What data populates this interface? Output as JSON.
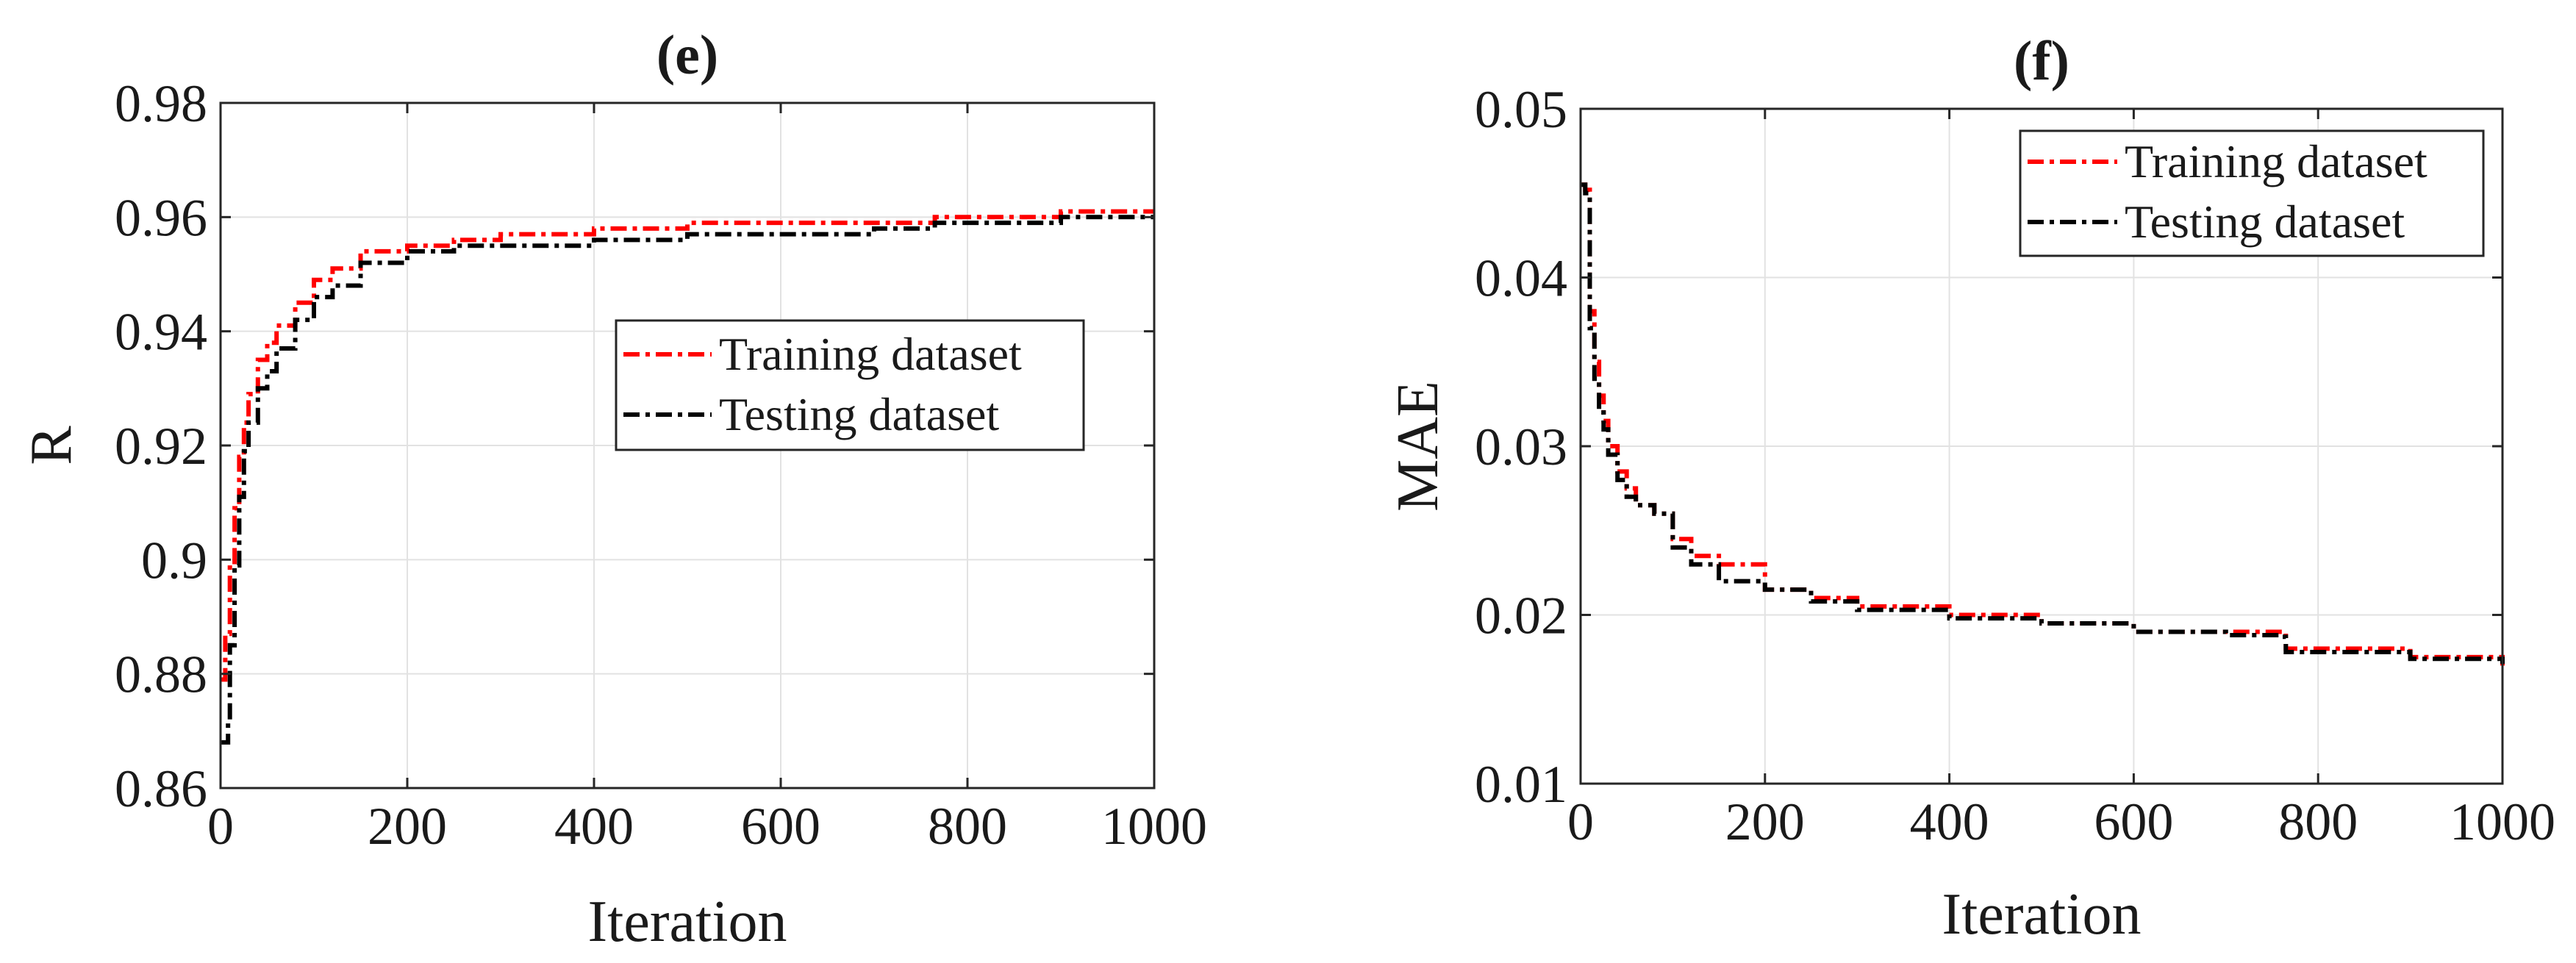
{
  "chart_data": [
    {
      "type": "line",
      "title": "(e)",
      "xlabel": "Iteration",
      "ylabel": "R",
      "xlim": [
        0,
        1000
      ],
      "ylim": [
        0.86,
        0.98
      ],
      "xticks": [
        0,
        200,
        400,
        600,
        800,
        1000
      ],
      "xtick_labels": [
        "0",
        "200",
        "400",
        "600",
        "800",
        "1000"
      ],
      "yticks": [
        0.86,
        0.88,
        0.9,
        0.92,
        0.94,
        0.96,
        0.98
      ],
      "ytick_labels": [
        "0.86",
        "0.88",
        "0.9",
        "0.92",
        "0.94",
        "0.96",
        "0.98"
      ],
      "grid": true,
      "legend_position": "center-right",
      "series": [
        {
          "name": "Training dataset",
          "color": "#ff0000",
          "x": [
            0,
            5,
            10,
            15,
            20,
            25,
            30,
            40,
            50,
            60,
            80,
            100,
            120,
            150,
            200,
            250,
            300,
            400,
            500,
            600,
            700,
            760,
            765,
            800,
            900,
            1000
          ],
          "y": [
            0.879,
            0.887,
            0.899,
            0.909,
            0.918,
            0.924,
            0.929,
            0.935,
            0.938,
            0.941,
            0.945,
            0.949,
            0.951,
            0.954,
            0.955,
            0.956,
            0.957,
            0.958,
            0.959,
            0.959,
            0.959,
            0.959,
            0.96,
            0.96,
            0.961,
            0.961
          ]
        },
        {
          "name": "Testing dataset",
          "color": "#000000",
          "x": [
            0,
            5,
            8,
            10,
            15,
            20,
            25,
            30,
            40,
            50,
            60,
            80,
            100,
            120,
            150,
            200,
            250,
            300,
            400,
            500,
            600,
            700,
            760,
            765,
            800,
            900,
            1000
          ],
          "y": [
            0.868,
            0.868,
            0.872,
            0.885,
            0.899,
            0.911,
            0.919,
            0.924,
            0.93,
            0.933,
            0.937,
            0.942,
            0.946,
            0.948,
            0.952,
            0.954,
            0.955,
            0.955,
            0.956,
            0.957,
            0.957,
            0.958,
            0.958,
            0.959,
            0.959,
            0.96,
            0.96
          ]
        }
      ]
    },
    {
      "type": "line",
      "title": "(f)",
      "xlabel": "Iteration",
      "ylabel": "MAE",
      "xlim": [
        0,
        1000
      ],
      "ylim": [
        0.01,
        0.05
      ],
      "xticks": [
        0,
        200,
        400,
        600,
        800,
        1000
      ],
      "xtick_labels": [
        "0",
        "200",
        "400",
        "600",
        "800",
        "1000"
      ],
      "yticks": [
        0.01,
        0.02,
        0.03,
        0.04,
        0.05
      ],
      "ytick_labels": [
        "0.01",
        "0.02",
        "0.03",
        "0.04",
        "0.05"
      ],
      "grid": true,
      "legend_position": "top-right",
      "series": [
        {
          "name": "Training dataset",
          "color": "#ff0000",
          "x": [
            0,
            5,
            10,
            15,
            20,
            25,
            30,
            40,
            50,
            60,
            80,
            100,
            120,
            150,
            200,
            250,
            300,
            400,
            500,
            600,
            700,
            760,
            765,
            800,
            900,
            1000
          ],
          "y": [
            0.0455,
            0.0452,
            0.038,
            0.035,
            0.033,
            0.0315,
            0.03,
            0.0285,
            0.0275,
            0.0265,
            0.026,
            0.0245,
            0.0235,
            0.023,
            0.0215,
            0.021,
            0.0205,
            0.02,
            0.0195,
            0.019,
            0.019,
            0.019,
            0.018,
            0.018,
            0.0175,
            0.017
          ]
        },
        {
          "name": "Testing dataset",
          "color": "#000000",
          "x": [
            0,
            5,
            10,
            15,
            20,
            25,
            30,
            40,
            50,
            60,
            80,
            100,
            120,
            150,
            200,
            250,
            300,
            400,
            500,
            600,
            700,
            760,
            765,
            800,
            900,
            1000
          ],
          "y": [
            0.0455,
            0.045,
            0.037,
            0.034,
            0.032,
            0.031,
            0.0295,
            0.028,
            0.027,
            0.0265,
            0.026,
            0.024,
            0.023,
            0.022,
            0.0215,
            0.0208,
            0.0203,
            0.0198,
            0.0195,
            0.019,
            0.0188,
            0.0187,
            0.0178,
            0.0178,
            0.0174,
            0.0171
          ]
        }
      ]
    }
  ]
}
